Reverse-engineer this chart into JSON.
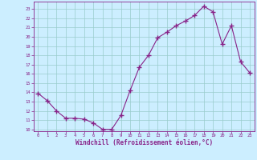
{
  "x": [
    0,
    1,
    2,
    3,
    4,
    5,
    6,
    7,
    8,
    9,
    10,
    11,
    12,
    13,
    14,
    15,
    16,
    17,
    18,
    19,
    20,
    21,
    22,
    23
  ],
  "y": [
    13.9,
    13.1,
    12.0,
    11.2,
    11.2,
    11.1,
    10.7,
    10.0,
    10.0,
    11.5,
    14.2,
    16.7,
    18.0,
    19.9,
    20.5,
    21.2,
    21.7,
    22.3,
    23.3,
    22.7,
    19.2,
    21.2,
    17.3,
    16.1
  ],
  "xlim": [
    -0.5,
    23.5
  ],
  "ylim": [
    9.8,
    23.8
  ],
  "yticks": [
    10,
    11,
    12,
    13,
    14,
    15,
    16,
    17,
    18,
    19,
    20,
    21,
    22,
    23
  ],
  "xticks": [
    0,
    1,
    2,
    3,
    4,
    5,
    6,
    7,
    8,
    9,
    10,
    11,
    12,
    13,
    14,
    15,
    16,
    17,
    18,
    19,
    20,
    21,
    22,
    23
  ],
  "xlabel": "Windchill (Refroidissement éolien,°C)",
  "line_color": "#882288",
  "marker_color": "#882288",
  "bg_color": "#cceeff",
  "grid_color": "#99cccc",
  "spine_color": "#882288",
  "label_color": "#882288",
  "tick_color": "#882288"
}
